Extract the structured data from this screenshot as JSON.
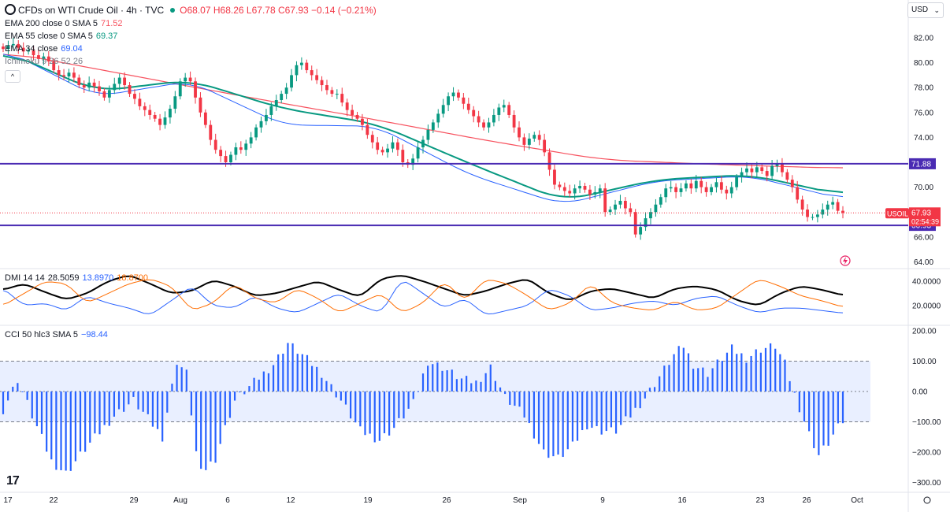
{
  "header": {
    "symbol_title": "CFDs on WTI Crude Oil · 4h · TVC",
    "open": "O68.07",
    "high": "H68.26",
    "low": "L67.78",
    "close": "C67.93",
    "change": "−0.14 (−0.21%)"
  },
  "currency_selector": {
    "value": "USD"
  },
  "collapse_label": "^",
  "indicators": {
    "ema200": {
      "label": "EMA 200 close 0 SMA 5",
      "value": "71.52",
      "color": "#f7525f"
    },
    "ema55": {
      "label": "EMA 55 close 0 SMA 5",
      "value": "69.37",
      "color": "#089981"
    },
    "ema34": {
      "label": "EMA 34 close",
      "value": "69.04",
      "color": "#2962ff"
    },
    "ichimoku": {
      "label": "Ichimoku 9 26 52 26"
    }
  },
  "dmi_legend": {
    "label": "DMI 14 14",
    "adx": "28.5059",
    "plus": "13.8970",
    "minus": "18.8700"
  },
  "cci_legend": {
    "label": "CCI 50 hlc3 SMA 5",
    "value": "−98.44"
  },
  "logo": "17",
  "chart_data": [
    {
      "type": "candlestick",
      "price_range": [
        62.5,
        83.5
      ],
      "y_ticks": [
        "82.00",
        "80.00",
        "78.00",
        "76.00",
        "74.00",
        "72.00",
        "70.00",
        "68.00",
        "66.00",
        "64.00"
      ],
      "x_labels": [
        "17",
        "22",
        "29",
        "Aug",
        "6",
        "12",
        "19",
        "26",
        "Sep",
        "9",
        "16",
        "23",
        "26",
        "Oct"
      ],
      "last_price": {
        "symbol": "USOIL",
        "price": "67.93",
        "countdown": "02:54:39",
        "value": 67.93,
        "color": "#f23645"
      },
      "horizontal_levels": [
        {
          "value": 71.88,
          "label": "71.88",
          "color": "#4a2bb3"
        },
        {
          "value": 66.93,
          "label": "66.93",
          "color": "#4a2bb3"
        }
      ],
      "closes": [
        81.1,
        81.4,
        81.5,
        81.2,
        80.9,
        81.0,
        80.6,
        80.3,
        80.5,
        80.1,
        79.4,
        79.0,
        78.9,
        79.2,
        78.8,
        78.2,
        78.0,
        78.4,
        78.1,
        77.7,
        77.2,
        77.8,
        78.3,
        78.8,
        78.2,
        77.5,
        77.1,
        76.5,
        76.2,
        75.8,
        75.5,
        75.0,
        75.6,
        76.3,
        77.3,
        78.5,
        78.8,
        78.5,
        77.2,
        76.0,
        75.0,
        73.8,
        73.0,
        72.5,
        72.0,
        72.6,
        73.2,
        73.0,
        73.5,
        74.0,
        74.8,
        75.3,
        75.8,
        76.5,
        77.0,
        77.5,
        78.0,
        79.0,
        79.8,
        80.0,
        79.4,
        79.0,
        78.6,
        78.2,
        77.8,
        77.5,
        77.5,
        76.8,
        76.2,
        75.8,
        75.5,
        75.0,
        74.2,
        73.6,
        73.0,
        72.8,
        73.1,
        73.6,
        73.0,
        72.0,
        71.8,
        72.3,
        73.2,
        73.8,
        74.6,
        75.2,
        75.9,
        76.6,
        77.3,
        77.6,
        77.2,
        76.7,
        76.2,
        75.7,
        75.2,
        74.8,
        75.2,
        75.8,
        76.4,
        76.6,
        75.8,
        74.8,
        74.0,
        73.4,
        73.9,
        74.2,
        73.8,
        72.8,
        71.4,
        70.2,
        70.0,
        69.7,
        69.5,
        69.9,
        70.1,
        69.8,
        69.4,
        69.6,
        69.9,
        68.0,
        68.2,
        68.6,
        68.9,
        68.3,
        68.0,
        66.2,
        66.8,
        67.5,
        68.0,
        68.6,
        69.2,
        69.9,
        70.0,
        69.6,
        69.9,
        70.3,
        69.9,
        70.5,
        70.0,
        69.6,
        70.0,
        70.4,
        69.8,
        69.5,
        70.0,
        70.8,
        71.2,
        71.5,
        71.2,
        71.6,
        71.3,
        70.9,
        71.7,
        71.9,
        71.2,
        70.6,
        70.0,
        69.0,
        68.2,
        67.6,
        67.6,
        67.8,
        68.2,
        68.6,
        68.8,
        68.1,
        67.93
      ],
      "ema200": [
        80.9,
        79.1,
        77.3,
        75.6,
        73.8,
        72.2,
        71.8,
        71.52
      ],
      "ema55": [
        81.0,
        77.7,
        78.6,
        76.3,
        75.1,
        71.9,
        68.9,
        70.6,
        71.0,
        69.37
      ],
      "ema34": [
        81.1,
        77.3,
        78.5,
        75.0,
        74.9,
        71.0,
        68.6,
        70.5,
        70.9,
        69.04
      ]
    },
    {
      "type": "line",
      "name": "DMI 14 14",
      "y_ticks": [
        "40.0000",
        "20.0000"
      ],
      "y_range": [
        0,
        50
      ],
      "series": [
        {
          "name": "ADX",
          "color": "#000000",
          "values": [
            33,
            38,
            31,
            25,
            30,
            40,
            45,
            38,
            30,
            32,
            41,
            36,
            28,
            30,
            35,
            40,
            33,
            27,
            42,
            45,
            40,
            34,
            28,
            32,
            38,
            42,
            30,
            24,
            32,
            34,
            30,
            26,
            34,
            36,
            33,
            24,
            20,
            30,
            36,
            33,
            28.5059
          ]
        },
        {
          "name": "+DI",
          "color": "#2962ff",
          "values": [
            34,
            20,
            22,
            16,
            28,
            22,
            18,
            12,
            24,
            36,
            20,
            18,
            28,
            18,
            14,
            22,
            30,
            20,
            14,
            42,
            30,
            18,
            26,
            12,
            16,
            20,
            34,
            28,
            16,
            18,
            22,
            24,
            20,
            26,
            28,
            20,
            14,
            18,
            18,
            16,
            13.897
          ]
        },
        {
          "name": "−DI",
          "color": "#ff6d00",
          "values": [
            20,
            30,
            40,
            38,
            22,
            30,
            38,
            42,
            36,
            16,
            22,
            38,
            26,
            22,
            34,
            26,
            14,
            22,
            30,
            14,
            22,
            40,
            24,
            42,
            38,
            28,
            16,
            22,
            38,
            22,
            18,
            16,
            24,
            16,
            18,
            30,
            42,
            36,
            28,
            24,
            18.87
          ]
        }
      ]
    },
    {
      "type": "bar",
      "name": "CCI 50 hlc3 SMA 5",
      "y_ticks": [
        "200.00",
        "100.00",
        "0.00",
        "−100.00",
        "−200.00",
        "−300.00"
      ],
      "y_range": [
        -310,
        210
      ],
      "band": [
        -100,
        100
      ],
      "keyframes": [
        [
          0,
          -60
        ],
        [
          3,
          40
        ],
        [
          6,
          -80
        ],
        [
          10,
          -230
        ],
        [
          13,
          -270
        ],
        [
          17,
          -190
        ],
        [
          23,
          -80
        ],
        [
          27,
          -30
        ],
        [
          31,
          -110
        ],
        [
          33,
          -150
        ],
        [
          36,
          100
        ],
        [
          38,
          60
        ],
        [
          40,
          -200
        ],
        [
          41,
          -270
        ],
        [
          44,
          -220
        ],
        [
          46,
          -120
        ],
        [
          48,
          -30
        ],
        [
          52,
          30
        ],
        [
          56,
          90
        ],
        [
          59,
          160
        ],
        [
          62,
          120
        ],
        [
          66,
          60
        ],
        [
          70,
          -30
        ],
        [
          74,
          -130
        ],
        [
          78,
          -160
        ],
        [
          81,
          -120
        ],
        [
          85,
          -40
        ],
        [
          88,
          100
        ],
        [
          91,
          80
        ],
        [
          95,
          40
        ],
        [
          98,
          30
        ],
        [
          101,
          80
        ],
        [
          104,
          -20
        ],
        [
          108,
          -80
        ],
        [
          112,
          -200
        ],
        [
          115,
          -220
        ],
        [
          118,
          -180
        ],
        [
          121,
          -110
        ],
        [
          124,
          -130
        ],
        [
          127,
          -130
        ],
        [
          130,
          -80
        ],
        [
          133,
          -20
        ],
        [
          136,
          50
        ],
        [
          139,
          120
        ],
        [
          141,
          150
        ],
        [
          143,
          90
        ],
        [
          146,
          60
        ],
        [
          149,
          110
        ],
        [
          151,
          140
        ],
        [
          154,
          110
        ],
        [
          157,
          140
        ],
        [
          160,
          150
        ],
        [
          162,
          90
        ],
        [
          164,
          -10
        ],
        [
          167,
          -140
        ],
        [
          169,
          -210
        ],
        [
          171,
          -170
        ],
        [
          173,
          -120
        ],
        [
          174,
          -98.44
        ]
      ]
    }
  ]
}
